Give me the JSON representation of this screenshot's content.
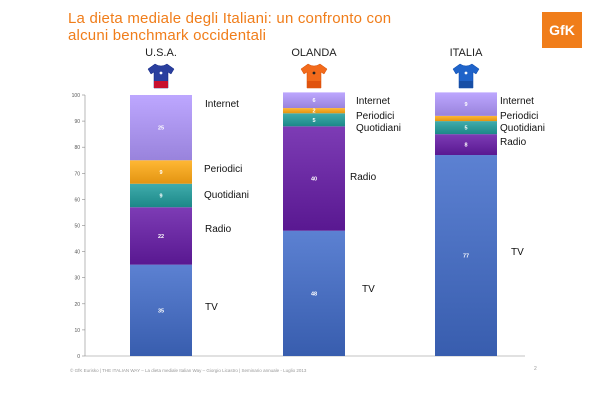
{
  "header": {
    "title": "La dieta mediale  degli Italiani: un confronto con alcuni benchmark occidentali",
    "logo_text": "GfK",
    "logo_color": "#f07d1a"
  },
  "footer": {
    "text": "© GfK Eurisko | THE ITALIAN WAY – La dieta mediale Italian Way – Giorgio Licastro | Seminario annuale - Luglio 2013",
    "page": "2"
  },
  "chart_data": {
    "type": "bar",
    "stacked": true,
    "ylim": [
      0,
      100
    ],
    "yticks": [
      0,
      10,
      20,
      30,
      40,
      50,
      60,
      70,
      80,
      90,
      100
    ],
    "categories": [
      "U.S.A.",
      "OLANDA",
      "ITALIA"
    ],
    "series": [
      {
        "name": "TV",
        "color": "#4a6fc0",
        "values": [
          35,
          48,
          77
        ]
      },
      {
        "name": "Radio",
        "color": "#6b2aa3",
        "values": [
          22,
          40,
          8
        ]
      },
      {
        "name": "Quotidiani",
        "color": "#2e9a9a",
        "values": [
          9,
          5,
          5
        ]
      },
      {
        "name": "Periodici",
        "color": "#f5a623",
        "values": [
          9,
          2,
          2
        ]
      },
      {
        "name": "Internet",
        "color": "#ab95ee",
        "values": [
          25,
          6,
          9
        ]
      }
    ],
    "bar_labels": [
      [
        "35",
        "22",
        "9",
        "9",
        "25"
      ],
      [
        "48",
        "40",
        "5",
        "2",
        "6"
      ],
      [
        "77",
        "8",
        "5",
        "",
        "9"
      ]
    ],
    "icons": [
      "usa-jersey-icon",
      "netherlands-jersey-icon",
      "italy-jersey-icon"
    ]
  }
}
